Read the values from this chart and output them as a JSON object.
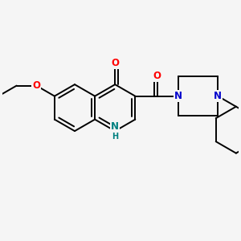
{
  "background_color": "#f5f5f5",
  "bond_color": "#000000",
  "bond_width": 1.4,
  "atom_colors": {
    "O": "#ff0000",
    "N_blue": "#0000cc",
    "N_teal": "#008080",
    "C": "#000000"
  },
  "font_size_atom": 8.5,
  "xlim": [
    -1.55,
    1.7
  ],
  "ylim": [
    -1.1,
    1.05
  ]
}
